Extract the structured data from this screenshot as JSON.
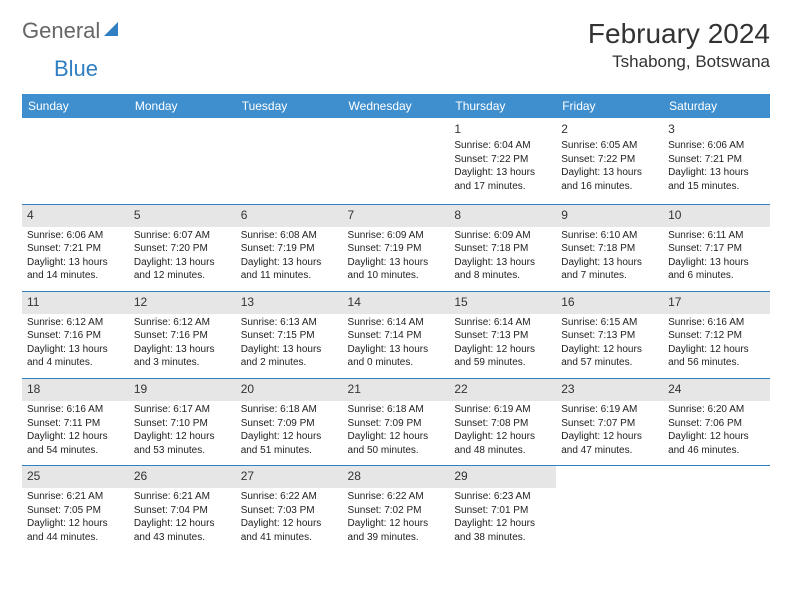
{
  "logo": {
    "part1": "General",
    "part2": "Blue"
  },
  "title": "February 2024",
  "location": "Tshabong, Botswana",
  "colors": {
    "header_bg": "#3f8fcf",
    "header_text": "#ffffff",
    "divider": "#2f7fc2",
    "alt_row_bg": "#e6e6e6",
    "text": "#222222",
    "logo_gray": "#666666",
    "logo_blue": "#2f7fc2"
  },
  "day_headers": [
    "Sunday",
    "Monday",
    "Tuesday",
    "Wednesday",
    "Thursday",
    "Friday",
    "Saturday"
  ],
  "weeks": [
    {
      "alt": false,
      "days": [
        null,
        null,
        null,
        null,
        {
          "n": "1",
          "sr": "6:04 AM",
          "ss": "7:22 PM",
          "dl": "13 hours and 17 minutes."
        },
        {
          "n": "2",
          "sr": "6:05 AM",
          "ss": "7:22 PM",
          "dl": "13 hours and 16 minutes."
        },
        {
          "n": "3",
          "sr": "6:06 AM",
          "ss": "7:21 PM",
          "dl": "13 hours and 15 minutes."
        }
      ]
    },
    {
      "alt": true,
      "days": [
        {
          "n": "4",
          "sr": "6:06 AM",
          "ss": "7:21 PM",
          "dl": "13 hours and 14 minutes."
        },
        {
          "n": "5",
          "sr": "6:07 AM",
          "ss": "7:20 PM",
          "dl": "13 hours and 12 minutes."
        },
        {
          "n": "6",
          "sr": "6:08 AM",
          "ss": "7:19 PM",
          "dl": "13 hours and 11 minutes."
        },
        {
          "n": "7",
          "sr": "6:09 AM",
          "ss": "7:19 PM",
          "dl": "13 hours and 10 minutes."
        },
        {
          "n": "8",
          "sr": "6:09 AM",
          "ss": "7:18 PM",
          "dl": "13 hours and 8 minutes."
        },
        {
          "n": "9",
          "sr": "6:10 AM",
          "ss": "7:18 PM",
          "dl": "13 hours and 7 minutes."
        },
        {
          "n": "10",
          "sr": "6:11 AM",
          "ss": "7:17 PM",
          "dl": "13 hours and 6 minutes."
        }
      ]
    },
    {
      "alt": true,
      "days": [
        {
          "n": "11",
          "sr": "6:12 AM",
          "ss": "7:16 PM",
          "dl": "13 hours and 4 minutes."
        },
        {
          "n": "12",
          "sr": "6:12 AM",
          "ss": "7:16 PM",
          "dl": "13 hours and 3 minutes."
        },
        {
          "n": "13",
          "sr": "6:13 AM",
          "ss": "7:15 PM",
          "dl": "13 hours and 2 minutes."
        },
        {
          "n": "14",
          "sr": "6:14 AM",
          "ss": "7:14 PM",
          "dl": "13 hours and 0 minutes."
        },
        {
          "n": "15",
          "sr": "6:14 AM",
          "ss": "7:13 PM",
          "dl": "12 hours and 59 minutes."
        },
        {
          "n": "16",
          "sr": "6:15 AM",
          "ss": "7:13 PM",
          "dl": "12 hours and 57 minutes."
        },
        {
          "n": "17",
          "sr": "6:16 AM",
          "ss": "7:12 PM",
          "dl": "12 hours and 56 minutes."
        }
      ]
    },
    {
      "alt": true,
      "days": [
        {
          "n": "18",
          "sr": "6:16 AM",
          "ss": "7:11 PM",
          "dl": "12 hours and 54 minutes."
        },
        {
          "n": "19",
          "sr": "6:17 AM",
          "ss": "7:10 PM",
          "dl": "12 hours and 53 minutes."
        },
        {
          "n": "20",
          "sr": "6:18 AM",
          "ss": "7:09 PM",
          "dl": "12 hours and 51 minutes."
        },
        {
          "n": "21",
          "sr": "6:18 AM",
          "ss": "7:09 PM",
          "dl": "12 hours and 50 minutes."
        },
        {
          "n": "22",
          "sr": "6:19 AM",
          "ss": "7:08 PM",
          "dl": "12 hours and 48 minutes."
        },
        {
          "n": "23",
          "sr": "6:19 AM",
          "ss": "7:07 PM",
          "dl": "12 hours and 47 minutes."
        },
        {
          "n": "24",
          "sr": "6:20 AM",
          "ss": "7:06 PM",
          "dl": "12 hours and 46 minutes."
        }
      ]
    },
    {
      "alt": true,
      "days": [
        {
          "n": "25",
          "sr": "6:21 AM",
          "ss": "7:05 PM",
          "dl": "12 hours and 44 minutes."
        },
        {
          "n": "26",
          "sr": "6:21 AM",
          "ss": "7:04 PM",
          "dl": "12 hours and 43 minutes."
        },
        {
          "n": "27",
          "sr": "6:22 AM",
          "ss": "7:03 PM",
          "dl": "12 hours and 41 minutes."
        },
        {
          "n": "28",
          "sr": "6:22 AM",
          "ss": "7:02 PM",
          "dl": "12 hours and 39 minutes."
        },
        {
          "n": "29",
          "sr": "6:23 AM",
          "ss": "7:01 PM",
          "dl": "12 hours and 38 minutes."
        },
        null,
        null
      ]
    }
  ],
  "labels": {
    "sunrise": "Sunrise:",
    "sunset": "Sunset:",
    "daylight": "Daylight:"
  }
}
